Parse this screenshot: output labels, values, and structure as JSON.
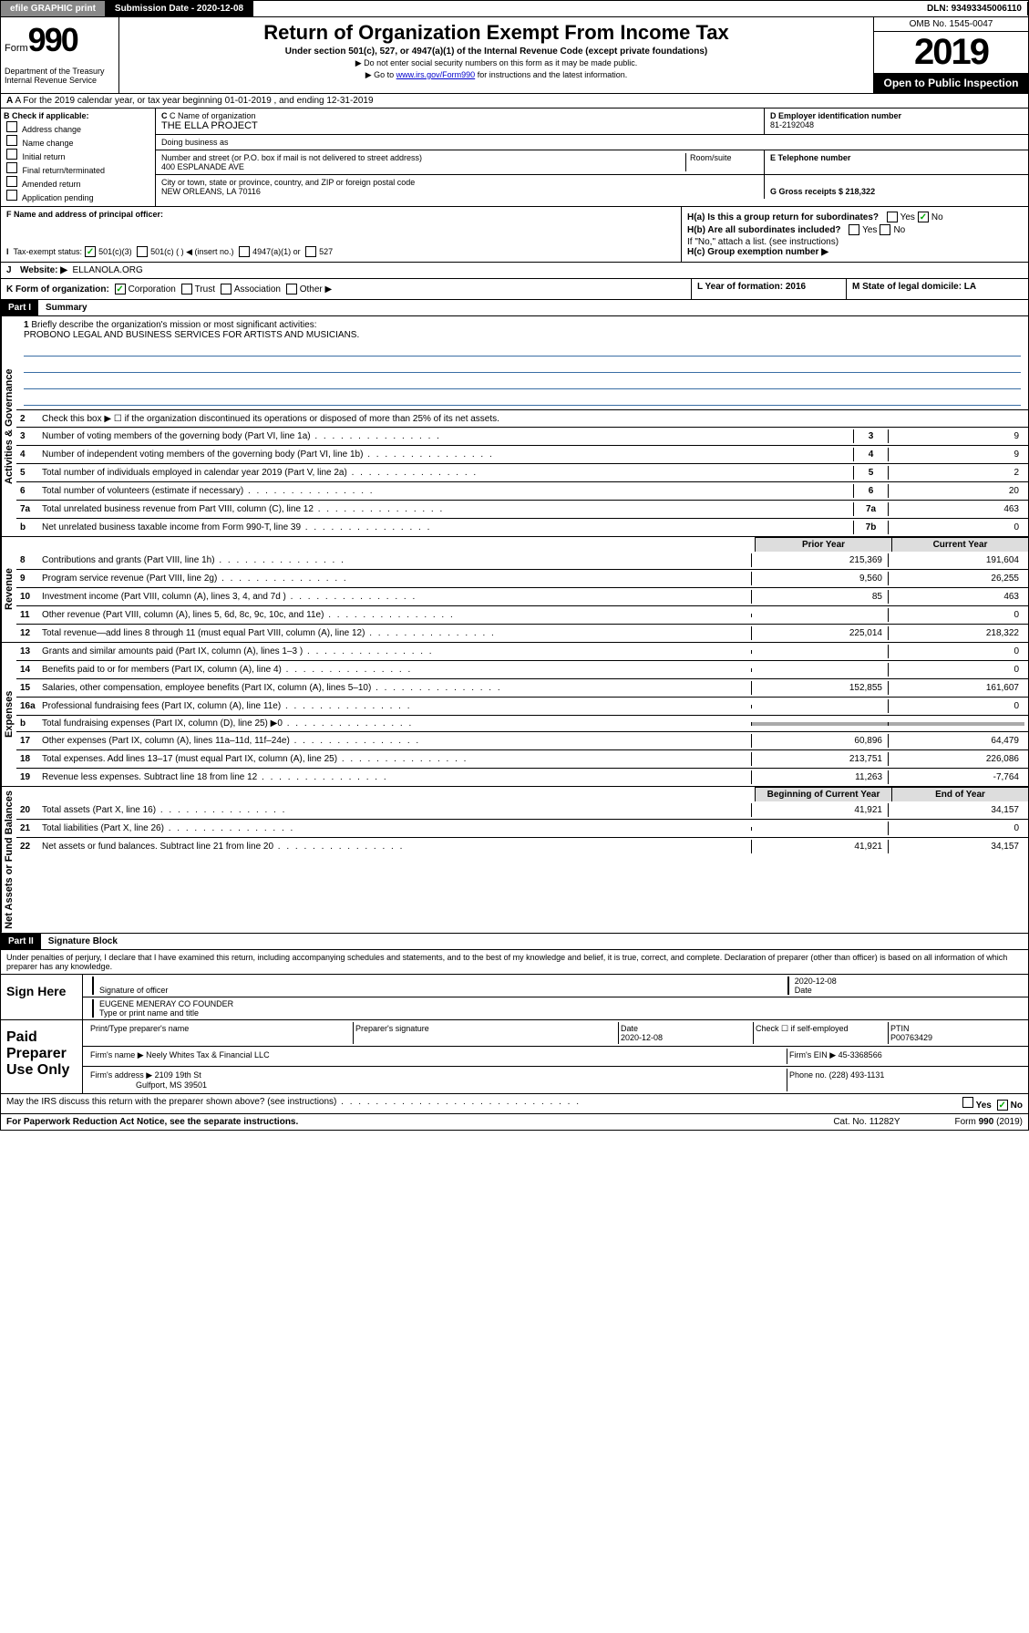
{
  "topbar": {
    "efile": "efile GRAPHIC print",
    "subdate_lbl": "Submission Date - 2020-12-08",
    "dln": "DLN: 93493345006110"
  },
  "header": {
    "form_word": "Form",
    "form_num": "990",
    "dept": "Department of the Treasury\nInternal Revenue Service",
    "title": "Return of Organization Exempt From Income Tax",
    "sub1": "Under section 501(c), 527, or 4947(a)(1) of the Internal Revenue Code (except private foundations)",
    "sub2": "▶ Do not enter social security numbers on this form as it may be made public.",
    "sub3_pre": "▶ Go to ",
    "sub3_link": "www.irs.gov/Form990",
    "sub3_post": " for instructions and the latest information.",
    "omb": "OMB No. 1545-0047",
    "year": "2019",
    "open": "Open to Public Inspection"
  },
  "row_a": "A For the 2019 calendar year, or tax year beginning 01-01-2019   , and ending 12-31-2019",
  "box_b": {
    "hdr": "B Check if applicable:",
    "addr": "Address change",
    "name": "Name change",
    "init": "Initial return",
    "final": "Final return/terminated",
    "amend": "Amended return",
    "app": "Application pending"
  },
  "box_c": {
    "name_lbl": "C Name of organization",
    "name": "THE ELLA PROJECT",
    "dba_lbl": "Doing business as",
    "addr_lbl": "Number and street (or P.O. box if mail is not delivered to street address)",
    "room_lbl": "Room/suite",
    "addr": "400 ESPLANADE AVE",
    "city_lbl": "City or town, state or province, country, and ZIP or foreign postal code",
    "city": "NEW ORLEANS, LA  70116"
  },
  "box_d": {
    "lbl": "D Employer identification number",
    "val": "81-2192048"
  },
  "box_e": {
    "lbl": "E Telephone number"
  },
  "box_g": {
    "lbl": "G Gross receipts $ 218,322"
  },
  "box_f": "F  Name and address of principal officer:",
  "box_h": {
    "a": "H(a)  Is this a group return for subordinates?",
    "b": "H(b)  Are all subordinates included?",
    "b2": "If \"No,\" attach a list. (see instructions)",
    "c": "H(c)  Group exemption number ▶",
    "yes": "Yes",
    "no": "No"
  },
  "row_i": {
    "lbl": "Tax-exempt status:",
    "c3": "501(c)(3)",
    "c": "501(c) (   ) ◀ (insert no.)",
    "a1": "4947(a)(1) or",
    "527": "527"
  },
  "row_j": {
    "lbl": "J",
    "text": "Website: ▶",
    "val": "ELLANOLA.ORG"
  },
  "row_k": {
    "text": "K Form of organization:",
    "corp": "Corporation",
    "trust": "Trust",
    "assoc": "Association",
    "other": "Other ▶"
  },
  "row_l": {
    "lbl": "L Year of formation: 2016"
  },
  "row_m": {
    "lbl": "M State of legal domicile: LA"
  },
  "part1": {
    "hdr": "Part I",
    "title": "Summary"
  },
  "sect_labels": {
    "gov": "Activities & Governance",
    "rev": "Revenue",
    "exp": "Expenses",
    "net": "Net Assets or Fund Balances"
  },
  "mission": {
    "num": "1",
    "text": "Briefly describe the organization's mission or most significant activities:",
    "val": "PROBONO LEGAL AND BUSINESS SERVICES FOR ARTISTS AND MUSICIANS."
  },
  "gov_lines": [
    {
      "n": "2",
      "t": "Check this box ▶ ☐  if the organization discontinued its operations or disposed of more than 25% of its net assets."
    },
    {
      "n": "3",
      "t": "Number of voting members of the governing body (Part VI, line 1a)",
      "box": "3",
      "v": "9"
    },
    {
      "n": "4",
      "t": "Number of independent voting members of the governing body (Part VI, line 1b)",
      "box": "4",
      "v": "9"
    },
    {
      "n": "5",
      "t": "Total number of individuals employed in calendar year 2019 (Part V, line 2a)",
      "box": "5",
      "v": "2"
    },
    {
      "n": "6",
      "t": "Total number of volunteers (estimate if necessary)",
      "box": "6",
      "v": "20"
    },
    {
      "n": "7a",
      "t": "Total unrelated business revenue from Part VIII, column (C), line 12",
      "box": "7a",
      "v": "463"
    },
    {
      "n": " b",
      "t": "Net unrelated business taxable income from Form 990-T, line 39",
      "box": "7b",
      "v": "0"
    }
  ],
  "col_hdrs": {
    "prior": "Prior Year",
    "curr": "Current Year",
    "beg": "Beginning of Current Year",
    "end": "End of Year"
  },
  "rev_lines": [
    {
      "n": "8",
      "t": "Contributions and grants (Part VIII, line 1h)",
      "p": "215,369",
      "c": "191,604"
    },
    {
      "n": "9",
      "t": "Program service revenue (Part VIII, line 2g)",
      "p": "9,560",
      "c": "26,255"
    },
    {
      "n": "10",
      "t": "Investment income (Part VIII, column (A), lines 3, 4, and 7d )",
      "p": "85",
      "c": "463"
    },
    {
      "n": "11",
      "t": "Other revenue (Part VIII, column (A), lines 5, 6d, 8c, 9c, 10c, and 11e)",
      "p": "",
      "c": "0"
    },
    {
      "n": "12",
      "t": "Total revenue—add lines 8 through 11 (must equal Part VIII, column (A), line 12)",
      "p": "225,014",
      "c": "218,322"
    }
  ],
  "exp_lines": [
    {
      "n": "13",
      "t": "Grants and similar amounts paid (Part IX, column (A), lines 1–3 )",
      "p": "",
      "c": "0"
    },
    {
      "n": "14",
      "t": "Benefits paid to or for members (Part IX, column (A), line 4)",
      "p": "",
      "c": "0"
    },
    {
      "n": "15",
      "t": "Salaries, other compensation, employee benefits (Part IX, column (A), lines 5–10)",
      "p": "152,855",
      "c": "161,607"
    },
    {
      "n": "16a",
      "t": "Professional fundraising fees (Part IX, column (A), line 11e)",
      "p": "",
      "c": "0"
    },
    {
      "n": " b",
      "t": "Total fundraising expenses (Part IX, column (D), line 25) ▶0",
      "p": "gray",
      "c": "gray"
    },
    {
      "n": "17",
      "t": "Other expenses (Part IX, column (A), lines 11a–11d, 11f–24e)",
      "p": "60,896",
      "c": "64,479"
    },
    {
      "n": "18",
      "t": "Total expenses. Add lines 13–17 (must equal Part IX, column (A), line 25)",
      "p": "213,751",
      "c": "226,086"
    },
    {
      "n": "19",
      "t": "Revenue less expenses. Subtract line 18 from line 12",
      "p": "11,263",
      "c": "-7,764"
    }
  ],
  "net_lines": [
    {
      "n": "20",
      "t": "Total assets (Part X, line 16)",
      "p": "41,921",
      "c": "34,157"
    },
    {
      "n": "21",
      "t": "Total liabilities (Part X, line 26)",
      "p": "",
      "c": "0"
    },
    {
      "n": "22",
      "t": "Net assets or fund balances. Subtract line 21 from line 20",
      "p": "41,921",
      "c": "34,157"
    }
  ],
  "part2": {
    "hdr": "Part II",
    "title": "Signature Block"
  },
  "penalties": "Under penalties of perjury, I declare that I have examined this return, including accompanying schedules and statements, and to the best of my knowledge and belief, it is true, correct, and complete. Declaration of preparer (other than officer) is based on all information of which preparer has any knowledge.",
  "sign": {
    "here": "Sign Here",
    "sig_lbl": "Signature of officer",
    "date": "2020-12-08",
    "date_lbl": "Date",
    "name": "EUGENE MENERAY CO FOUNDER",
    "name_lbl": "Type or print name and title"
  },
  "paid": {
    "lbl": "Paid Preparer Use Only",
    "col1": "Print/Type preparer's name",
    "col2": "Preparer's signature",
    "col3_lbl": "Date",
    "col3": "2020-12-08",
    "col4_lbl": "Check ☐ if self-employed",
    "col5_lbl": "PTIN",
    "col5": "P00763429",
    "firm_lbl": "Firm's name   ▶",
    "firm": "Neely Whites Tax & Financial LLC",
    "ein_lbl": "Firm's EIN ▶",
    "ein": "45-3368566",
    "addr_lbl": "Firm's address ▶",
    "addr": "2109 19th St",
    "addr2": "Gulfport, MS  39501",
    "phone_lbl": "Phone no.",
    "phone": "(228) 493-1131"
  },
  "discuss": "May the IRS discuss this return with the preparer shown above? (see instructions)",
  "footer": {
    "pra": "For Paperwork Reduction Act Notice, see the separate instructions.",
    "cat": "Cat. No. 11282Y",
    "form": "Form 990 (2019)"
  }
}
